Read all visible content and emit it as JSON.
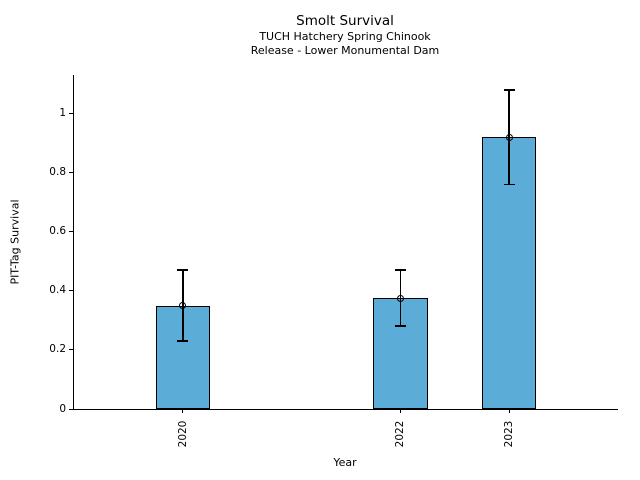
{
  "chart_data": {
    "type": "bar",
    "title": "Smolt Survival",
    "subtitle1": "TUCH Hatchery Spring Chinook",
    "subtitle2": "Release - Lower Monumental Dam",
    "xlabel": "Year",
    "ylabel": "PIT-Tag Survival",
    "categories": [
      "2020",
      "2022",
      "2023"
    ],
    "x_positions": [
      2020,
      2022,
      2023
    ],
    "values": [
      0.35,
      0.375,
      0.92
    ],
    "ci_low": [
      0.23,
      0.28,
      0.76
    ],
    "ci_high": [
      0.47,
      0.47,
      1.08
    ],
    "yticks": [
      0,
      0.2,
      0.4,
      0.6,
      0.8,
      1
    ],
    "ytick_labels": [
      "0",
      "0.2",
      "0.4",
      "0.6",
      "0.8",
      "1"
    ],
    "xlim": [
      2019,
      2024
    ],
    "ylim": [
      0,
      1.13
    ],
    "bar_width_years": 0.5,
    "marker": "open-circle",
    "grid": false,
    "legend": false,
    "bar_color": "#5BACD6",
    "bar_edge_color": "#000000",
    "error_color": "#000000"
  }
}
